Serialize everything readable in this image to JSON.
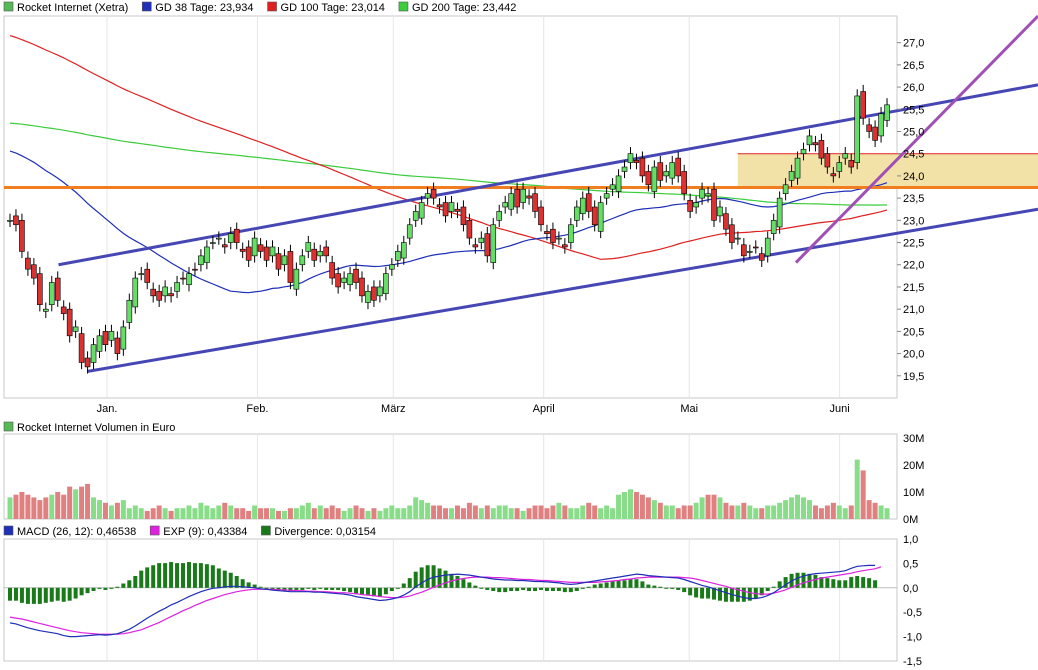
{
  "chart_data": [
    {
      "type": "candlestick",
      "panel": "price",
      "legend": [
        {
          "label": "Rocket Internet (Xetra)",
          "color": "#55b955"
        },
        {
          "label": "GD 38 Tage: 23,934",
          "color": "#1f2fb8"
        },
        {
          "label": "GD 100 Tage: 23,014",
          "color": "#e02020"
        },
        {
          "label": "GD 200 Tage: 23,442",
          "color": "#3ccc3c"
        }
      ],
      "y_ticks": [
        "19,5",
        "20,0",
        "20,5",
        "21,0",
        "21,5",
        "22,0",
        "22,5",
        "23,0",
        "23,5",
        "24,0",
        "24,5",
        "25,0",
        "25,5",
        "26,0",
        "26,5",
        "27,0"
      ],
      "ylim": [
        19.0,
        27.6
      ],
      "x_labels": [
        {
          "label": "Jan.",
          "day": 20
        },
        {
          "label": "Feb.",
          "day": 51
        },
        {
          "label": "März",
          "day": 79
        },
        {
          "label": "April",
          "day": 110
        },
        {
          "label": "Mai",
          "day": 140
        },
        {
          "label": "Juni",
          "day": 171
        }
      ],
      "closes": [
        23.0,
        22.9,
        22.3,
        21.9,
        21.7,
        21.1,
        21.0,
        21.6,
        21.2,
        20.9,
        20.4,
        20.6,
        19.8,
        19.7,
        20.2,
        20.4,
        20.2,
        20.5,
        20.0,
        20.6,
        21.2,
        21.7,
        21.8,
        21.6,
        21.3,
        21.2,
        21.5,
        21.3,
        21.6,
        21.7,
        21.8,
        21.9,
        22.2,
        22.4,
        22.5,
        22.6,
        22.4,
        22.7,
        22.5,
        22.3,
        22.1,
        22.6,
        22.3,
        22.1,
        22.4,
        21.9,
        22.2,
        21.6,
        21.9,
        22.2,
        22.5,
        22.1,
        22.3,
        22.2,
        21.7,
        21.5,
        21.7,
        21.8,
        21.6,
        21.3,
        21.4,
        21.2,
        21.5,
        21.8,
        22.0,
        22.3,
        22.5,
        22.9,
        23.2,
        23.4,
        23.6,
        23.5,
        23.3,
        23.1,
        23.4,
        23.2,
        22.9,
        22.6,
        22.4,
        22.6,
        22.2,
        22.9,
        23.2,
        23.4,
        23.6,
        23.3,
        23.7,
        23.5,
        23.2,
        22.9,
        22.7,
        22.5,
        22.6,
        22.4,
        22.9,
        23.3,
        23.5,
        23.2,
        22.9,
        23.4,
        23.6,
        23.8,
        24.0,
        24.2,
        24.5,
        24.3,
        24.0,
        23.8,
        24.2,
        23.9,
        24.1,
        24.3,
        24.0,
        23.6,
        23.2,
        23.4,
        23.7,
        23.6,
        23.0,
        23.3,
        22.8,
        22.5,
        22.6,
        22.2,
        22.3,
        22.4,
        22.1,
        22.6,
        23.0,
        23.5,
        23.8,
        24.1,
        24.4,
        24.6,
        24.9,
        24.7,
        24.4,
        24.2,
        24.0,
        24.3,
        24.5,
        24.2,
        25.8,
        25.3,
        25.0,
        24.8,
        25.4,
        25.6
      ],
      "support_levels": [
        {
          "value": 23.74,
          "color": "#f07d20"
        },
        {
          "value": 24.5,
          "color": "#e02020"
        }
      ],
      "zone": [
        23.74,
        24.5
      ]
    },
    {
      "type": "bar",
      "panel": "volume",
      "legend": [
        {
          "label": "Rocket Internet Volumen in Euro",
          "color": "#55b955"
        }
      ],
      "y_ticks": [
        "30M",
        "20M",
        "10M",
        "0M"
      ],
      "ylim": [
        0,
        30
      ],
      "values": [
        8,
        9,
        10,
        9,
        8,
        7,
        8,
        9,
        10,
        9,
        12,
        11,
        12,
        13,
        8,
        7,
        6,
        5,
        6,
        7,
        4,
        5,
        4,
        3,
        4,
        5,
        4,
        3,
        4,
        4,
        5,
        4,
        6,
        5,
        4,
        5,
        6,
        5,
        4,
        4,
        3,
        5,
        4,
        4,
        4,
        3,
        3,
        4,
        4,
        5,
        6,
        4,
        5,
        4,
        5,
        4,
        3,
        4,
        5,
        4,
        3,
        4,
        3,
        4,
        5,
        4,
        4,
        5,
        8,
        7,
        6,
        5,
        5,
        4,
        4,
        5,
        4,
        6,
        5,
        4,
        5,
        4,
        5,
        5,
        4,
        4,
        3,
        4,
        5,
        5,
        4,
        5,
        6,
        5,
        4,
        4,
        5,
        6,
        5,
        4,
        5,
        4,
        9,
        10,
        11,
        10,
        9,
        8,
        7,
        6,
        5,
        5,
        4,
        5,
        5,
        6,
        8,
        9,
        9,
        8,
        6,
        5,
        5,
        6,
        5,
        4,
        4,
        5,
        5,
        6,
        7,
        8,
        9,
        8,
        7,
        5,
        4,
        5,
        6,
        5,
        4,
        5,
        22,
        18,
        7,
        6,
        5,
        4
      ]
    },
    {
      "type": "line",
      "panel": "macd",
      "legend": [
        {
          "label": "MACD (26, 12): 0,46538",
          "color": "#1f2fb8"
        },
        {
          "label": "EXP (9): 0,43384",
          "color": "#e020e0"
        },
        {
          "label": "Divergence: 0,03154",
          "color": "#1a7a1a"
        }
      ],
      "y_ticks": [
        "1,0",
        "0,5",
        "0,0",
        "-0,5",
        "-1,0",
        "-1,5"
      ],
      "ylim": [
        -1.5,
        1.0
      ],
      "macd": [
        -0.72,
        -0.74,
        -0.78,
        -0.82,
        -0.85,
        -0.88,
        -0.9,
        -0.92,
        -0.94,
        -0.98,
        -1.0,
        -1.0,
        -0.99,
        -0.98,
        -0.97,
        -0.96,
        -0.97,
        -0.96,
        -0.94,
        -0.9,
        -0.85,
        -0.78,
        -0.7,
        -0.62,
        -0.55,
        -0.48,
        -0.42,
        -0.35,
        -0.3,
        -0.24,
        -0.18,
        -0.13,
        -0.08,
        -0.04,
        -0.01,
        0.0,
        0.02,
        0.03,
        0.03,
        0.02,
        0.01,
        0.0,
        -0.02,
        -0.03,
        -0.05,
        -0.06,
        -0.07,
        -0.08,
        -0.08,
        -0.08,
        -0.08,
        -0.09,
        -0.09,
        -0.1,
        -0.11,
        -0.12,
        -0.13,
        -0.15,
        -0.18,
        -0.2,
        -0.22,
        -0.24,
        -0.26,
        -0.25,
        -0.23,
        -0.2,
        -0.15,
        -0.08,
        0.02,
        0.1,
        0.17,
        0.22,
        0.24,
        0.26,
        0.27,
        0.28,
        0.27,
        0.26,
        0.24,
        0.22,
        0.2,
        0.18,
        0.17,
        0.16,
        0.16,
        0.15,
        0.15,
        0.14,
        0.13,
        0.13,
        0.12,
        0.11,
        0.1,
        0.08,
        0.07,
        0.08,
        0.1,
        0.12,
        0.14,
        0.16,
        0.18,
        0.2,
        0.22,
        0.24,
        0.26,
        0.28,
        0.27,
        0.25,
        0.24,
        0.23,
        0.22,
        0.21,
        0.2,
        0.17,
        0.13,
        0.09,
        0.05,
        0.02,
        -0.02,
        -0.06,
        -0.1,
        -0.14,
        -0.17,
        -0.2,
        -0.22,
        -0.22,
        -0.2,
        -0.16,
        -0.1,
        -0.02,
        0.06,
        0.14,
        0.2,
        0.24,
        0.27,
        0.29,
        0.3,
        0.31,
        0.32,
        0.33,
        0.35,
        0.4,
        0.44,
        0.45,
        0.46,
        0.46
      ],
      "signal": [
        -0.6,
        -0.62,
        -0.64,
        -0.67,
        -0.7,
        -0.73,
        -0.76,
        -0.79,
        -0.82,
        -0.85,
        -0.88,
        -0.9,
        -0.92,
        -0.93,
        -0.94,
        -0.95,
        -0.95,
        -0.95,
        -0.95,
        -0.94,
        -0.92,
        -0.89,
        -0.86,
        -0.81,
        -0.76,
        -0.71,
        -0.65,
        -0.59,
        -0.53,
        -0.47,
        -0.42,
        -0.36,
        -0.31,
        -0.26,
        -0.22,
        -0.18,
        -0.14,
        -0.11,
        -0.08,
        -0.06,
        -0.04,
        -0.03,
        -0.03,
        -0.03,
        -0.03,
        -0.04,
        -0.04,
        -0.05,
        -0.06,
        -0.06,
        -0.07,
        -0.07,
        -0.08,
        -0.08,
        -0.09,
        -0.1,
        -0.1,
        -0.11,
        -0.12,
        -0.14,
        -0.15,
        -0.16,
        -0.18,
        -0.19,
        -0.2,
        -0.2,
        -0.19,
        -0.17,
        -0.13,
        -0.09,
        -0.04,
        0.01,
        0.06,
        0.1,
        0.14,
        0.17,
        0.19,
        0.21,
        0.22,
        0.22,
        0.22,
        0.21,
        0.21,
        0.2,
        0.19,
        0.18,
        0.17,
        0.17,
        0.16,
        0.15,
        0.15,
        0.14,
        0.13,
        0.12,
        0.11,
        0.11,
        0.11,
        0.11,
        0.11,
        0.12,
        0.13,
        0.14,
        0.15,
        0.17,
        0.18,
        0.2,
        0.21,
        0.22,
        0.22,
        0.22,
        0.22,
        0.22,
        0.22,
        0.21,
        0.2,
        0.18,
        0.15,
        0.12,
        0.09,
        0.06,
        0.03,
        -0.01,
        -0.04,
        -0.07,
        -0.1,
        -0.12,
        -0.13,
        -0.13,
        -0.11,
        -0.08,
        -0.04,
        0.01,
        0.06,
        0.1,
        0.14,
        0.17,
        0.2,
        0.22,
        0.24,
        0.26,
        0.28,
        0.3,
        0.33,
        0.35,
        0.37,
        0.39,
        0.43
      ]
    }
  ]
}
